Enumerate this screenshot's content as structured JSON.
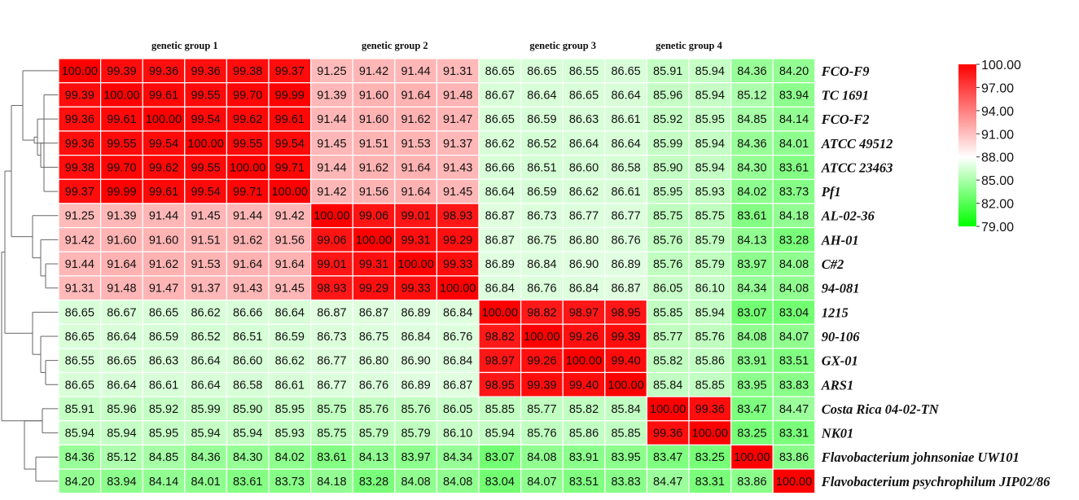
{
  "chart_data": {
    "type": "heatmap",
    "group_labels": [
      "genetic group 1",
      "genetic group 2",
      "genetic group 3",
      "genetic group 4"
    ],
    "group_spans": [
      [
        0,
        5
      ],
      [
        6,
        9
      ],
      [
        10,
        13
      ],
      [
        14,
        15
      ]
    ],
    "rows": [
      "FCO-F9",
      "TC 1691",
      "FCO-F2",
      "ATCC 49512",
      "ATCC 23463",
      "Pf1",
      "AL-02-36",
      "AH-01",
      "C#2",
      "94-081",
      "1215",
      "90-106",
      "GX-01",
      "ARS1",
      "Costa Rica 04-02-TN",
      "NK01",
      "Flavobacterium johnsoniae UW101",
      "Flavobacterium psychrophilum JIP02/86"
    ],
    "values": [
      [
        100.0,
        99.39,
        99.36,
        99.36,
        99.38,
        99.37,
        91.25,
        91.42,
        91.44,
        91.31,
        86.65,
        86.65,
        86.55,
        86.65,
        85.91,
        85.94,
        84.36,
        84.2
      ],
      [
        99.39,
        100.0,
        99.61,
        99.55,
        99.7,
        99.99,
        91.39,
        91.6,
        91.64,
        91.48,
        86.67,
        86.64,
        86.65,
        86.64,
        85.96,
        85.94,
        85.12,
        83.94
      ],
      [
        99.36,
        99.61,
        100.0,
        99.54,
        99.62,
        99.61,
        91.44,
        91.6,
        91.62,
        91.47,
        86.65,
        86.59,
        86.63,
        86.61,
        85.92,
        85.95,
        84.85,
        84.14
      ],
      [
        99.36,
        99.55,
        99.54,
        100.0,
        99.55,
        99.54,
        91.45,
        91.51,
        91.53,
        91.37,
        86.62,
        86.52,
        86.64,
        86.64,
        85.99,
        85.94,
        84.36,
        84.01
      ],
      [
        99.38,
        99.7,
        99.62,
        99.55,
        100.0,
        99.71,
        91.44,
        91.62,
        91.64,
        91.43,
        86.66,
        86.51,
        86.6,
        86.58,
        85.9,
        85.94,
        84.3,
        83.61
      ],
      [
        99.37,
        99.99,
        99.61,
        99.54,
        99.71,
        100.0,
        91.42,
        91.56,
        91.64,
        91.45,
        86.64,
        86.59,
        86.62,
        86.61,
        85.95,
        85.93,
        84.02,
        83.73
      ],
      [
        91.25,
        91.39,
        91.44,
        91.45,
        91.44,
        91.42,
        100.0,
        99.06,
        99.01,
        98.93,
        86.87,
        86.73,
        86.77,
        86.77,
        85.75,
        85.75,
        83.61,
        84.18
      ],
      [
        91.42,
        91.6,
        91.6,
        91.51,
        91.62,
        91.56,
        99.06,
        100.0,
        99.31,
        99.29,
        86.87,
        86.75,
        86.8,
        86.76,
        85.76,
        85.79,
        84.13,
        83.28
      ],
      [
        91.44,
        91.64,
        91.62,
        91.53,
        91.64,
        91.64,
        99.01,
        99.31,
        100.0,
        99.33,
        86.89,
        86.84,
        86.9,
        86.89,
        85.76,
        85.79,
        83.97,
        84.08
      ],
      [
        91.31,
        91.48,
        91.47,
        91.37,
        91.43,
        91.45,
        98.93,
        99.29,
        99.33,
        100.0,
        86.84,
        86.76,
        86.84,
        86.87,
        86.05,
        86.1,
        84.34,
        84.08
      ],
      [
        86.65,
        86.67,
        86.65,
        86.62,
        86.66,
        86.64,
        86.87,
        86.87,
        86.89,
        86.84,
        100.0,
        98.82,
        98.97,
        98.95,
        85.85,
        85.94,
        83.07,
        83.04
      ],
      [
        86.65,
        86.64,
        86.59,
        86.52,
        86.51,
        86.59,
        86.73,
        86.75,
        86.84,
        86.76,
        98.82,
        100.0,
        99.26,
        99.39,
        85.77,
        85.76,
        84.08,
        84.07
      ],
      [
        86.55,
        86.65,
        86.63,
        86.64,
        86.6,
        86.62,
        86.77,
        86.8,
        86.9,
        86.84,
        98.97,
        99.26,
        100.0,
        99.4,
        85.82,
        85.86,
        83.91,
        83.51
      ],
      [
        86.65,
        86.64,
        86.61,
        86.64,
        86.58,
        86.61,
        86.77,
        86.76,
        86.89,
        86.87,
        98.95,
        99.39,
        99.4,
        100.0,
        85.84,
        85.85,
        83.95,
        83.83
      ],
      [
        85.91,
        85.96,
        85.92,
        85.99,
        85.9,
        85.95,
        85.75,
        85.76,
        85.76,
        86.05,
        85.85,
        85.77,
        85.82,
        85.84,
        100.0,
        99.36,
        83.47,
        84.47
      ],
      [
        85.94,
        85.94,
        85.95,
        85.94,
        85.94,
        85.93,
        85.75,
        85.79,
        85.79,
        86.1,
        85.94,
        85.76,
        85.86,
        85.85,
        99.36,
        100.0,
        83.25,
        83.31
      ],
      [
        84.36,
        85.12,
        84.85,
        84.36,
        84.3,
        84.02,
        83.61,
        84.13,
        83.97,
        84.34,
        83.07,
        84.08,
        83.91,
        83.95,
        83.47,
        83.25,
        100.0,
        83.86
      ],
      [
        84.2,
        83.94,
        84.14,
        84.01,
        83.61,
        83.73,
        84.18,
        83.28,
        84.08,
        84.08,
        83.04,
        84.07,
        83.51,
        83.83,
        84.47,
        83.31,
        83.86,
        100.0
      ]
    ],
    "color_scale": {
      "min": 79.0,
      "mid": 88.0,
      "max": 100.0,
      "low_color": "#00ff00",
      "mid_color": "#ffffff",
      "high_color": "#ff0000",
      "ticks": [
        "100.00",
        "97.00",
        "94.00",
        "91.00",
        "88.00",
        "85.00",
        "82.00",
        "79.00"
      ]
    }
  }
}
